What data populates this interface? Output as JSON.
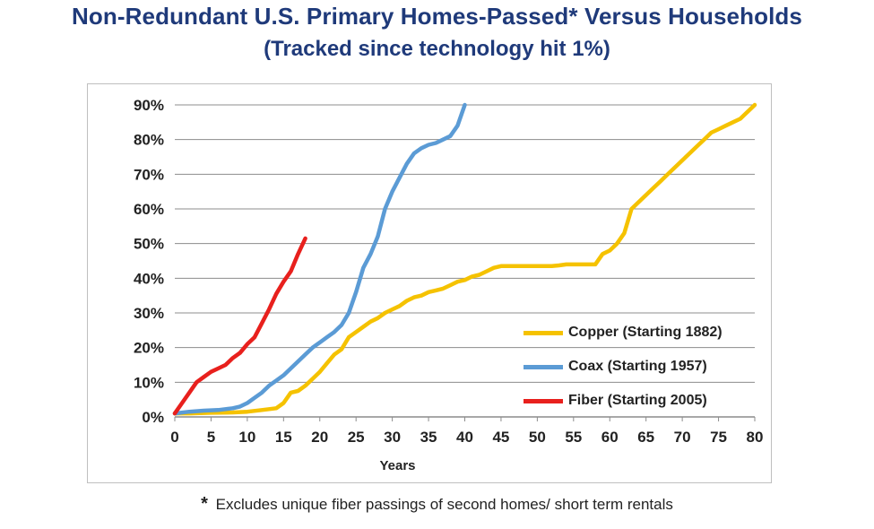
{
  "header": {
    "title": "Non-Redundant U.S. Primary Homes-Passed* Versus Households",
    "subtitle": "(Tracked since technology hit 1%)"
  },
  "footnote": {
    "star": "*",
    "text": "Excludes unique fiber passings of second homes/ short term rentals"
  },
  "chart_data": {
    "type": "line",
    "title": "Non-Redundant U.S. Primary Homes-Passed* Versus Households",
    "subtitle": "(Tracked since technology hit 1%)",
    "xlabel": "Years",
    "ylabel": "",
    "xlim": [
      0,
      80
    ],
    "ylim": [
      0,
      0.9
    ],
    "x_ticks": [
      "0",
      "5",
      "10",
      "15",
      "20",
      "25",
      "30",
      "35",
      "40",
      "45",
      "50",
      "55",
      "60",
      "65",
      "70",
      "75",
      "80"
    ],
    "y_ticks": [
      "0%",
      "10%",
      "20%",
      "30%",
      "40%",
      "50%",
      "60%",
      "70%",
      "80%",
      "90%"
    ],
    "grid": "horizontal",
    "legend_position": "bottom-right",
    "series": [
      {
        "name": "Copper (Starting 1882)",
        "color": "#f5c200",
        "x": [
          0,
          2,
          5,
          8,
          10,
          12,
          14,
          15,
          16,
          17,
          18,
          19,
          20,
          21,
          22,
          23,
          24,
          25,
          26,
          27,
          28,
          29,
          30,
          31,
          32,
          33,
          34,
          35,
          36,
          37,
          38,
          39,
          40,
          41,
          42,
          43,
          44,
          45,
          46,
          47,
          48,
          49,
          50,
          51,
          52,
          53,
          54,
          55,
          56,
          57,
          58,
          59,
          60,
          61,
          62,
          63,
          64,
          65,
          66,
          67,
          68,
          69,
          70,
          71,
          72,
          73,
          74,
          75,
          76,
          77,
          78,
          79,
          80
        ],
        "y": [
          0.01,
          0.01,
          0.012,
          0.013,
          0.015,
          0.02,
          0.025,
          0.04,
          0.07,
          0.075,
          0.09,
          0.11,
          0.13,
          0.155,
          0.18,
          0.195,
          0.23,
          0.245,
          0.26,
          0.275,
          0.285,
          0.3,
          0.31,
          0.32,
          0.335,
          0.345,
          0.35,
          0.36,
          0.365,
          0.37,
          0.38,
          0.39,
          0.395,
          0.405,
          0.41,
          0.42,
          0.43,
          0.435,
          0.435,
          0.435,
          0.435,
          0.435,
          0.435,
          0.435,
          0.435,
          0.437,
          0.44,
          0.44,
          0.44,
          0.44,
          0.44,
          0.47,
          0.48,
          0.5,
          0.53,
          0.6,
          0.62,
          0.64,
          0.66,
          0.68,
          0.7,
          0.72,
          0.74,
          0.76,
          0.78,
          0.8,
          0.82,
          0.83,
          0.84,
          0.85,
          0.86,
          0.88,
          0.9
        ]
      },
      {
        "name": "Coax (Starting 1957)",
        "color": "#5b9bd5",
        "x": [
          0,
          2,
          4,
          6,
          8,
          9,
          10,
          11,
          12,
          13,
          14,
          15,
          16,
          17,
          18,
          19,
          20,
          21,
          22,
          23,
          24,
          25,
          26,
          27,
          28,
          29,
          30,
          31,
          32,
          33,
          34,
          35,
          36,
          37,
          38,
          39,
          40
        ],
        "y": [
          0.01,
          0.015,
          0.018,
          0.02,
          0.025,
          0.03,
          0.04,
          0.055,
          0.07,
          0.09,
          0.105,
          0.12,
          0.14,
          0.16,
          0.18,
          0.2,
          0.215,
          0.23,
          0.245,
          0.265,
          0.3,
          0.36,
          0.43,
          0.47,
          0.52,
          0.6,
          0.65,
          0.69,
          0.73,
          0.76,
          0.775,
          0.785,
          0.79,
          0.8,
          0.81,
          0.84,
          0.9
        ]
      },
      {
        "name": "Fiber (Starting 2005)",
        "color": "#e8201d",
        "x": [
          0,
          1,
          2,
          3,
          4,
          5,
          6,
          7,
          8,
          9,
          10,
          11,
          12,
          13,
          14,
          15,
          16,
          17,
          18
        ],
        "y": [
          0.01,
          0.04,
          0.07,
          0.1,
          0.115,
          0.13,
          0.14,
          0.15,
          0.17,
          0.185,
          0.21,
          0.23,
          0.27,
          0.31,
          0.355,
          0.39,
          0.42,
          0.47,
          0.515
        ]
      }
    ]
  }
}
